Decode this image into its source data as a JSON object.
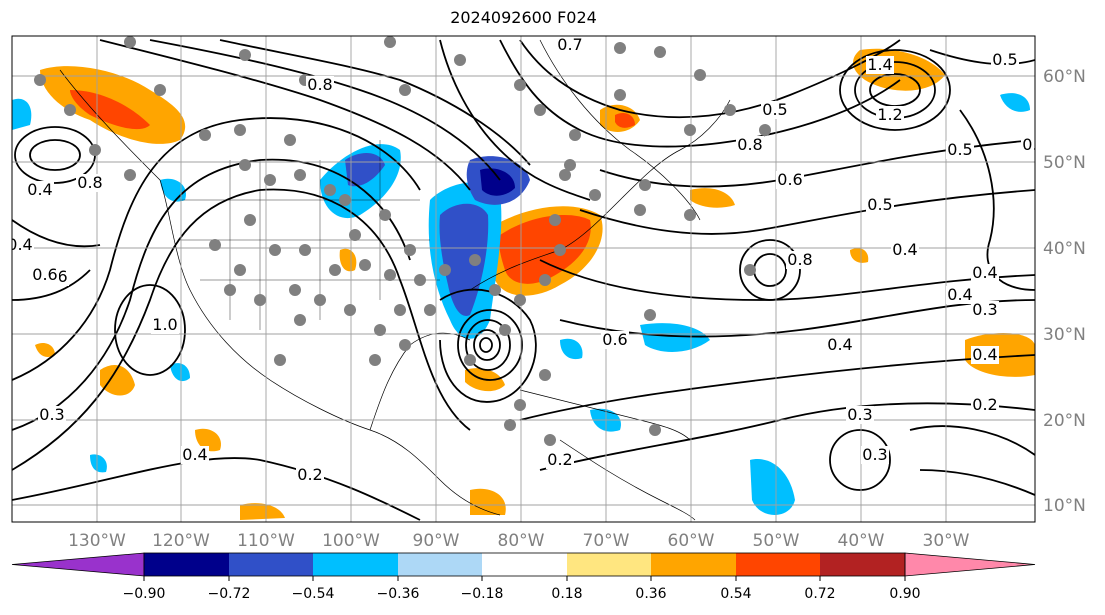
{
  "title": "2024092600 F024",
  "lon_labels": [
    "130°W",
    "120°W",
    "110°W",
    "100°W",
    "90°W",
    "80°W",
    "70°W",
    "60°W",
    "50°W",
    "40°W",
    "30°W"
  ],
  "lat_labels": [
    "60°N",
    "50°N",
    "40°N",
    "30°N",
    "20°N",
    "10°N"
  ],
  "colorbar": {
    "tick_labels": [
      "−0.90",
      "−0.72",
      "−0.54",
      "−0.36",
      "−0.18",
      "0.18",
      "0.36",
      "0.54",
      "0.72",
      "0.90"
    ],
    "colors": [
      "#9932cc",
      "#00008b",
      "#3050c8",
      "#00bfff",
      "#add8f6",
      "#ffffff",
      "#ffe680",
      "#ffa500",
      "#ff4500",
      "#b22222",
      "#ff88aa"
    ]
  },
  "contour_labels": [
    "0.4",
    "0.6",
    "0.8",
    "1.0",
    "0.3",
    "0.2",
    "0.4",
    "0.5",
    "0.6",
    "0.8",
    "1.2",
    "1.4",
    "0.5",
    "0.4",
    "0.3",
    "0.4",
    "0.6",
    "0.2",
    "0.4",
    "0.3",
    "0.4",
    "0.5",
    "0.6",
    "0.8",
    "0.2",
    "0.3",
    "0.4",
    "0.8",
    "0.6",
    "0.5",
    "0.4",
    "0.7"
  ],
  "colors": {
    "grid": "#a0a0a0",
    "axis_label": "#808080",
    "contour": "#000000",
    "station": "#808080"
  }
}
